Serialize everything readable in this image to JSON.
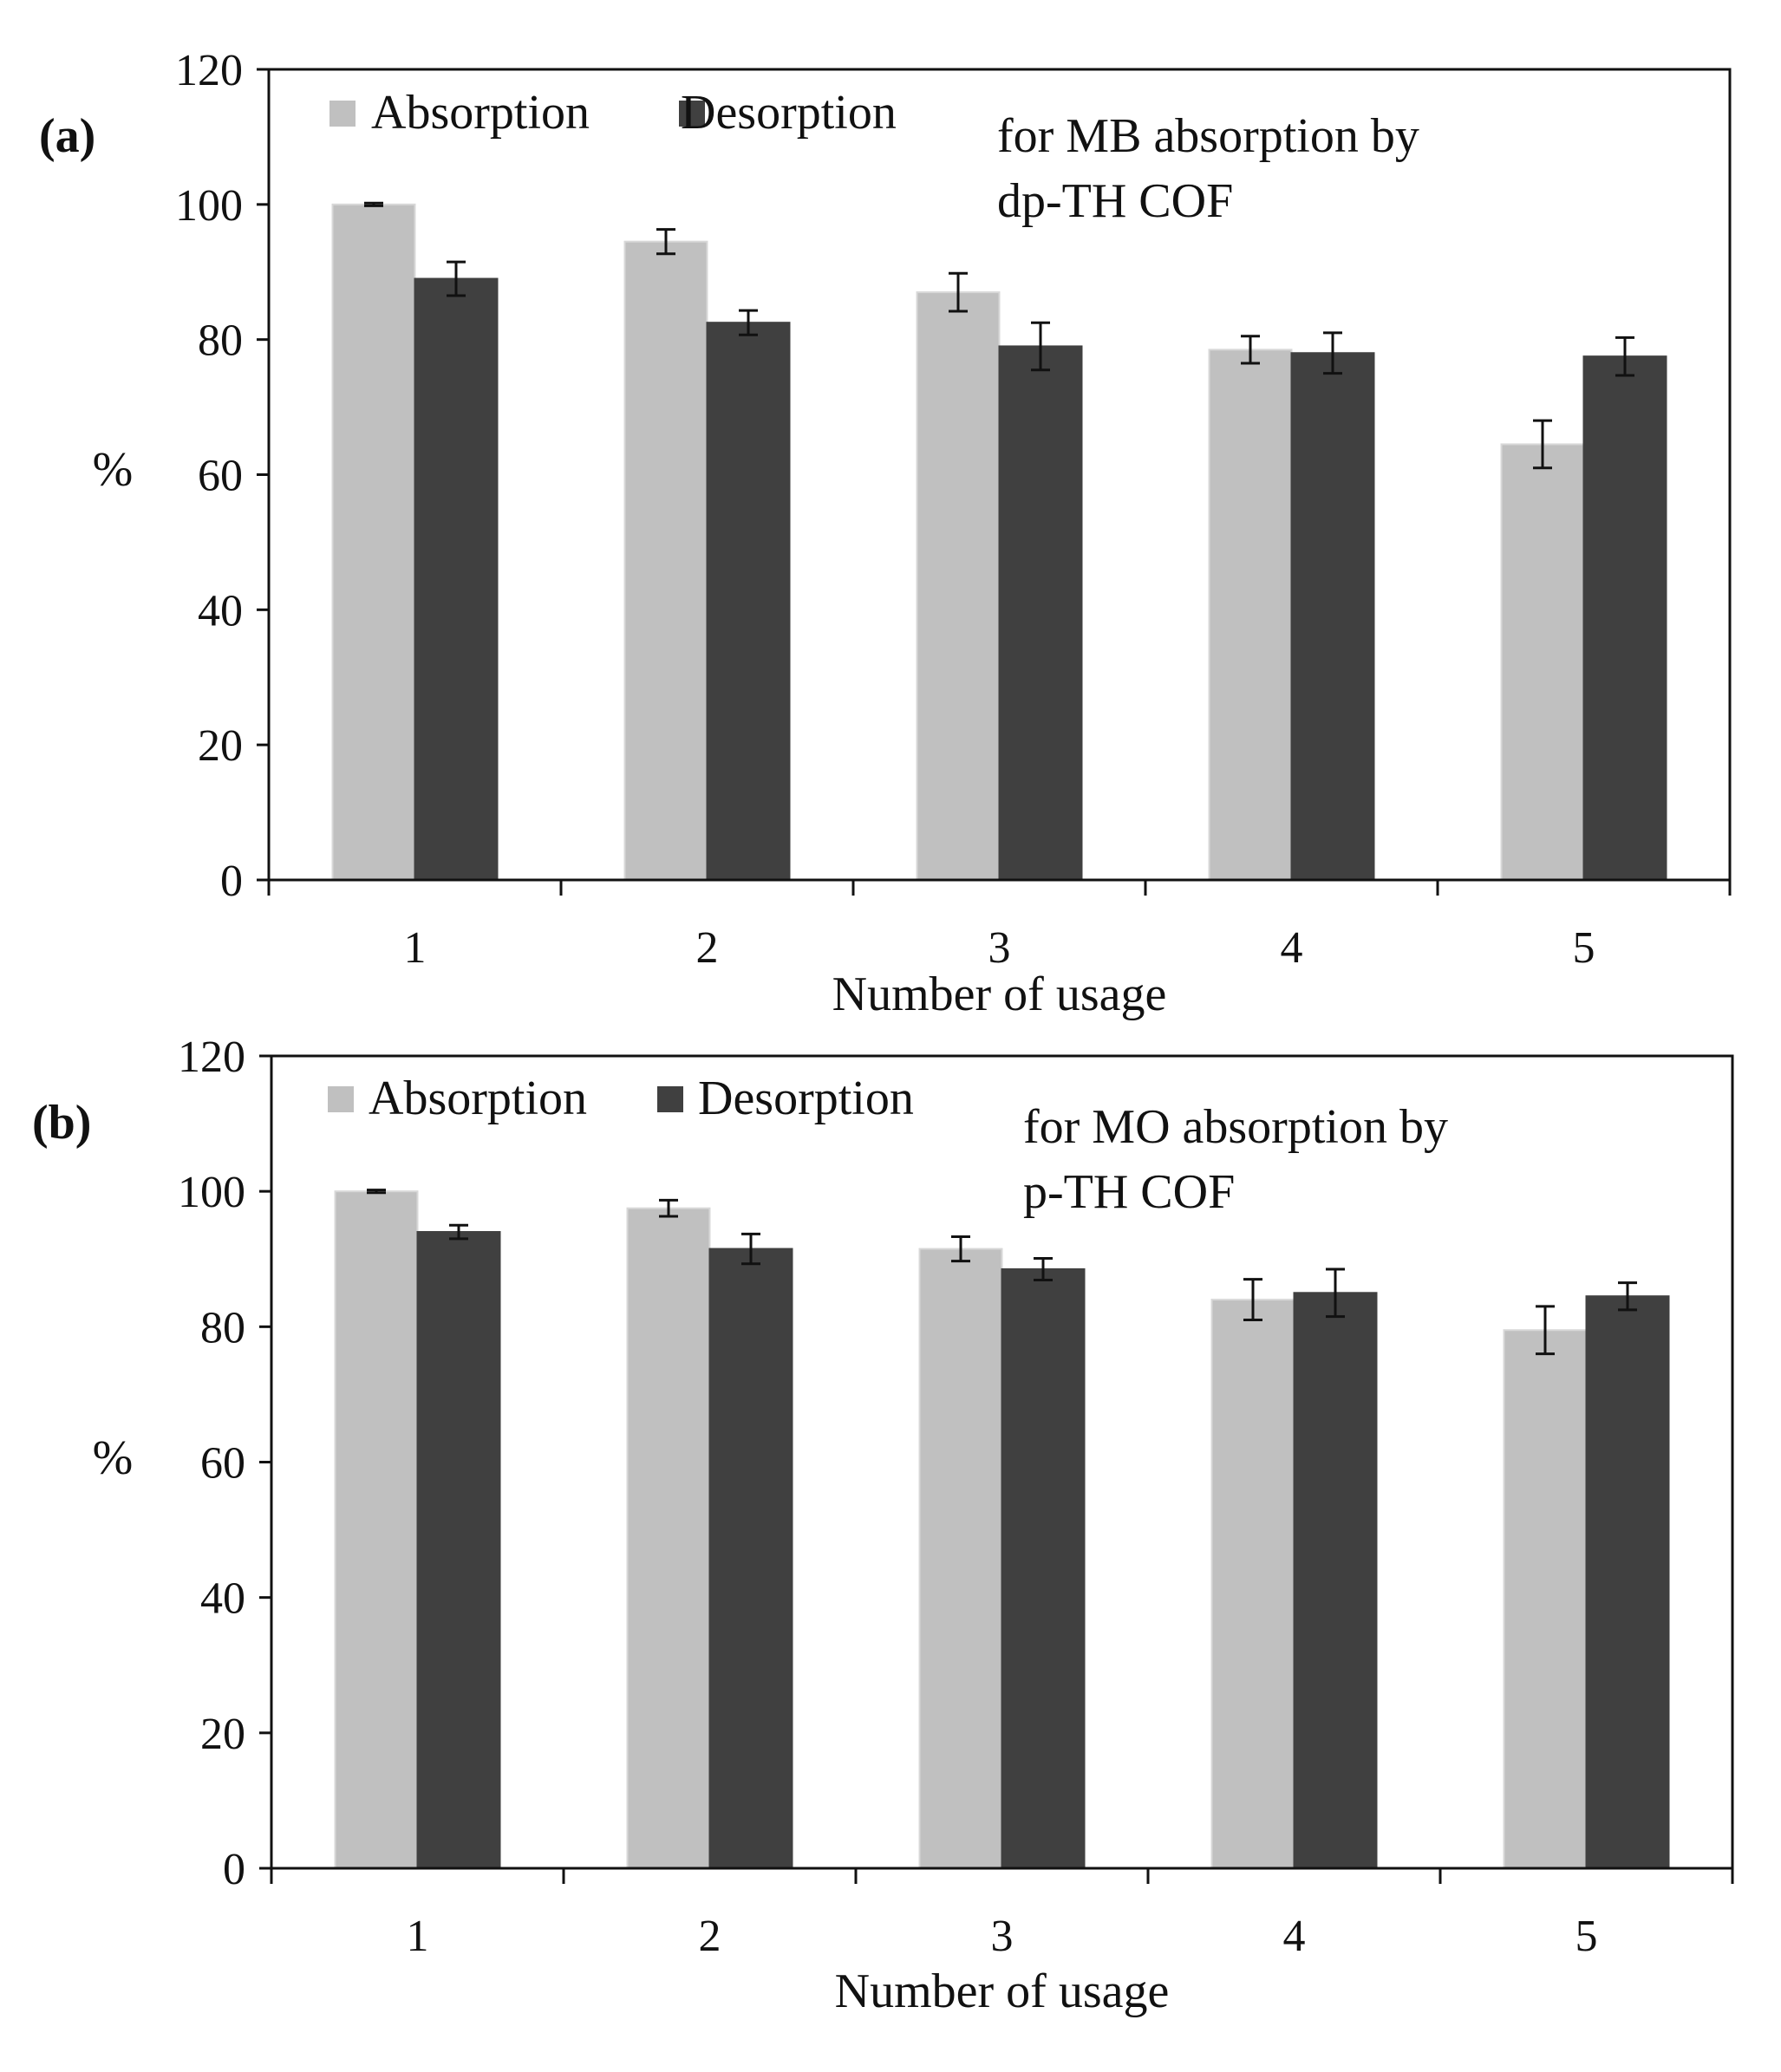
{
  "chart_data": [
    {
      "type": "bar",
      "panel_label": "(a)",
      "annotation": [
        "for MB absorption by",
        "dp-TH COF"
      ],
      "categories": [
        "1",
        "2",
        "3",
        "4",
        "5"
      ],
      "series": [
        {
          "name": "Absorption",
          "values": [
            100,
            94.5,
            87,
            78.5,
            64.5
          ],
          "errors": [
            0.2,
            1.8,
            2.8,
            2.0,
            3.5
          ],
          "color": "#c0c0c0"
        },
        {
          "name": "Desorption",
          "values": [
            89,
            82.5,
            79,
            78,
            77.5
          ],
          "errors": [
            2.5,
            1.8,
            3.5,
            3.0,
            2.8
          ],
          "color": "#404040"
        }
      ],
      "xlabel": "Number of usage",
      "ylabel": "%",
      "ylim": [
        0,
        120
      ],
      "yticks": [
        0,
        20,
        40,
        60,
        80,
        100,
        120
      ],
      "legend": "top-left",
      "grid": false
    },
    {
      "type": "bar",
      "panel_label": "(b)",
      "annotation": [
        "for MO absorption by",
        "p-TH COF"
      ],
      "categories": [
        "1",
        "2",
        "3",
        "4",
        "5"
      ],
      "series": [
        {
          "name": "Absorption",
          "values": [
            100,
            97.5,
            91.5,
            84,
            79.5
          ],
          "errors": [
            0.2,
            1.2,
            1.8,
            3.0,
            3.5
          ],
          "color": "#c0c0c0"
        },
        {
          "name": "Desorption",
          "values": [
            94,
            91.5,
            88.5,
            85,
            84.5
          ],
          "errors": [
            1.0,
            2.2,
            1.6,
            3.5,
            2.0
          ],
          "color": "#404040"
        }
      ],
      "xlabel": "Number of usage",
      "ylabel": "%",
      "ylim": [
        0,
        120
      ],
      "yticks": [
        0,
        20,
        40,
        60,
        80,
        100,
        120
      ],
      "legend": "top-left",
      "grid": false
    }
  ]
}
